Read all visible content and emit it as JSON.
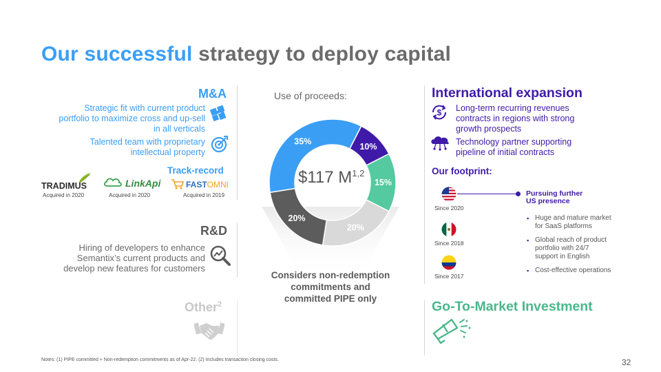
{
  "title": {
    "highlight": "Our successful",
    "rest": "strategy to deploy capital"
  },
  "ma": {
    "heading": "M&A",
    "text1": [
      "Strategic fit with current product",
      "portfolio to maximize cross and up-sell",
      "in all verticals"
    ],
    "text2": [
      "Talented team with proprietary",
      "intellectual property"
    ],
    "track_record": "Track-record",
    "acquisitions": [
      {
        "name": "TRADIMUS",
        "acquired": "Acquired in 2020"
      },
      {
        "name": "LinkApi",
        "acquired": "Acquired in 2020"
      },
      {
        "name_a": "FAST",
        "name_b": "OMNI",
        "acquired": "Acquired in 2019"
      }
    ]
  },
  "rd": {
    "heading": "R&D",
    "text": [
      "Hiring of developers to enhance",
      "Semantix’s current products and",
      "develop new features for customers"
    ]
  },
  "other": {
    "heading": "Other",
    "sup": "2"
  },
  "proceeds": {
    "label": "Use of proceeds:",
    "center_value": "$117 M",
    "center_sup": "1,2",
    "caption": [
      "Considers non-redemption",
      "commitments and",
      "committed PIPE only"
    ]
  },
  "chart_data": {
    "type": "pie",
    "title": "Use of proceeds:",
    "slices": [
      {
        "label": "35%",
        "value": 35,
        "color": "#3a9ef5"
      },
      {
        "label": "10%",
        "value": 10,
        "color": "#3f1aa8"
      },
      {
        "label": "15%",
        "value": 15,
        "color": "#55c9a0"
      },
      {
        "label": "20%",
        "value": 20,
        "color": "#d9d9d9"
      },
      {
        "label": "20%",
        "value": 20,
        "color": "#5c5c5c"
      }
    ]
  },
  "intl": {
    "heading": "International expansion",
    "item1": [
      "Long-term recurring revenues",
      "contracts in regions with strong",
      "growth prospects"
    ],
    "item2": [
      "Technology partner supporting",
      "pipeline of initial contracts"
    ],
    "footprint_label": "Our footprint:",
    "pursuing": [
      "Pursuing further",
      "US presence"
    ],
    "countries": [
      {
        "flag": "us-flag",
        "since": "Since 2020"
      },
      {
        "flag": "mexico-flag",
        "since": "Since 2018"
      },
      {
        "flag": "colombia-flag",
        "since": "Since 2017"
      }
    ],
    "bullets": [
      [
        "Huge and mature market",
        "for SaaS platforms"
      ],
      [
        "Global reach of product",
        "portfolio with 24/7",
        "support in English"
      ],
      [
        "Cost-effective operations"
      ]
    ]
  },
  "gtm": {
    "heading": "Go-To-Market Investment"
  },
  "notes": "Notes: (1) PIPE committed + Non-redemption commitments as of Apr-22. (2) Includes transaction closing costs.",
  "page_number": "32",
  "colors": {
    "blue": "#3a9ef5",
    "purple": "#3f1aa8",
    "green": "#4ab88c",
    "gray": "#5c5c5c",
    "light_gray": "#d9d9d9"
  }
}
